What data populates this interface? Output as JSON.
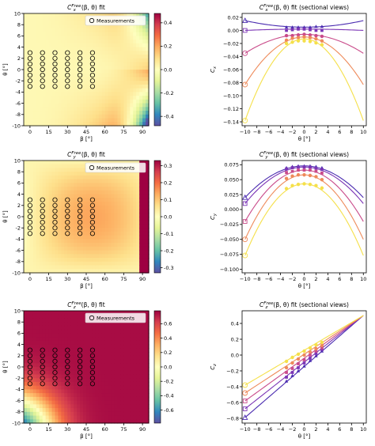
{
  "chart_data": [
    {
      "type": "heatmap",
      "title": "C_x^Free(β,θ) fit",
      "title_base": "C",
      "title_sub": "x",
      "title_sup": "Free",
      "title_rest": "(β, θ) fit",
      "xlabel": "β [°]",
      "ylabel": "θ [°]",
      "xticks": [
        0,
        15,
        30,
        45,
        60,
        75,
        90
      ],
      "yticks": [
        -10,
        -8,
        -6,
        -4,
        -2,
        0,
        2,
        4,
        6,
        8,
        10
      ],
      "xlim": [
        -5,
        95
      ],
      "ylim": [
        -10,
        10
      ],
      "legend": "Measurements",
      "colorbar": {
        "min": -0.48,
        "max": 0.48,
        "ticks": [
          "-0.4",
          "-0.2",
          "0.0",
          "0.2",
          "0.4"
        ],
        "tick_values": [
          -0.4,
          -0.2,
          0.0,
          0.2,
          0.4
        ]
      },
      "measurements_beta": [
        0,
        10,
        20,
        30,
        40,
        50
      ],
      "measurements_theta": [
        -3,
        -2,
        -1,
        0,
        1,
        2,
        3
      ]
    },
    {
      "type": "line",
      "title": "C_x^Free(β,θ) fit (sectional views)",
      "title_base": "C",
      "title_sub": "x",
      "title_sup": "Free",
      "title_rest": "(β, θ) fit (sectional views)",
      "xlabel": "θ [°]",
      "ylabel": "C_x",
      "ylabel_base": "C",
      "ylabel_sub": "x",
      "xticks": [
        -10,
        -8,
        -6,
        -4,
        -2,
        0,
        2,
        4,
        6,
        8,
        10
      ],
      "yticks": [
        0.02,
        0.0,
        -0.02,
        -0.04,
        -0.06,
        -0.08,
        -0.1,
        -0.12,
        -0.14
      ],
      "ytick_labels": [
        "0.02",
        "0.00",
        "−0.02",
        "−0.04",
        "−0.06",
        "−0.08",
        "−0.10",
        "−0.12",
        "−0.14"
      ],
      "xlim": [
        -10.5,
        10.5
      ],
      "ylim": [
        -0.146,
        0.026
      ],
      "series": [
        {
          "color": "#4a2bb0",
          "endpoint": 0.015,
          "values_at": [
            [
              -3,
              0.005
            ],
            [
              -2,
              0.005
            ],
            [
              -1,
              0.005
            ],
            [
              0,
              0.005
            ],
            [
              1,
              0.005
            ],
            [
              2,
              0.006
            ],
            [
              3,
              0.006
            ]
          ],
          "marker": "triangle",
          "curve": [
            0.0018,
            0.0,
            0.005
          ],
          "fit": "quad"
        },
        {
          "color": "#7b34b5",
          "endpoint": 0.0,
          "values_at": [
            [
              -3,
              0.0
            ],
            [
              -2,
              0.001
            ],
            [
              -1,
              0.002
            ],
            [
              0,
              0.002
            ],
            [
              1,
              0.001
            ],
            [
              2,
              0.0
            ],
            [
              3,
              0.0
            ]
          ],
          "marker": "square",
          "curve": [
            0.0009,
            0.0,
            0.002
          ],
          "fit": "quad"
        },
        {
          "color": "#c94b8a",
          "endpoint": -0.035,
          "values_at": [
            [
              -3,
              -0.008
            ],
            [
              -2,
              -0.008
            ],
            [
              -1,
              -0.007
            ],
            [
              0,
              -0.006
            ],
            [
              1,
              -0.007
            ],
            [
              2,
              -0.008
            ],
            [
              3,
              -0.009
            ]
          ],
          "marker": "circle",
          "curve": [
            -0.0003,
            0.0,
            -0.006
          ],
          "fit": "quad"
        },
        {
          "color": "#ee8a5a",
          "endpoint": -0.083,
          "values_at": [
            [
              -3,
              -0.015
            ],
            [
              -2,
              -0.012
            ],
            [
              -1,
              -0.011
            ],
            [
              0,
              -0.01
            ],
            [
              1,
              -0.011
            ],
            [
              2,
              -0.013
            ],
            [
              3,
              -0.016
            ]
          ],
          "marker": "circle",
          "curve": [
            -0.0008,
            0.0,
            -0.01
          ],
          "fit": "quad"
        },
        {
          "color": "#f5e04a",
          "endpoint": -0.138,
          "values_at": [
            [
              -3,
              -0.02
            ],
            [
              -2,
              -0.018
            ],
            [
              -1,
              -0.016
            ],
            [
              0,
              -0.016
            ],
            [
              1,
              -0.017
            ],
            [
              2,
              -0.019
            ],
            [
              3,
              -0.022
            ]
          ],
          "marker": "circle",
          "curve": [
            -0.00125,
            0.0,
            -0.013
          ],
          "fit": "quad"
        }
      ]
    },
    {
      "type": "heatmap",
      "title": "C_y^Free(β,θ) fit",
      "title_base": "C",
      "title_sub": "y",
      "title_sup": "Free",
      "title_rest": "(β, θ) fit",
      "xlabel": "β [°]",
      "ylabel": "θ [°]",
      "xticks": [
        0,
        15,
        30,
        45,
        60,
        75,
        90
      ],
      "yticks": [
        -10,
        -8,
        -6,
        -4,
        -2,
        0,
        2,
        4,
        6,
        8,
        10
      ],
      "xlim": [
        -5,
        95
      ],
      "ylim": [
        -10,
        10
      ],
      "legend": "Measurements",
      "colorbar": {
        "min": -0.33,
        "max": 0.33,
        "ticks": [
          "-0.3",
          "-0.2",
          "-0.1",
          "0.0",
          "0.1",
          "0.2",
          "0.3"
        ],
        "tick_values": [
          -0.3,
          -0.2,
          -0.1,
          0.0,
          0.1,
          0.2,
          0.3
        ]
      },
      "measurements_beta": [
        0,
        10,
        20,
        30,
        40,
        50
      ],
      "measurements_theta": [
        -3,
        -2,
        -1,
        0,
        1,
        2,
        3
      ]
    },
    {
      "type": "line",
      "title": "C_y^Free(β,θ) fit (sectional views)",
      "title_base": "C",
      "title_sub": "y",
      "title_sup": "Free",
      "title_rest": "(β, θ) fit (sectional views)",
      "xlabel": "θ [°]",
      "ylabel": "C_y",
      "ylabel_base": "C",
      "ylabel_sub": "y",
      "xticks": [
        -10,
        -8,
        -6,
        -4,
        -2,
        0,
        2,
        4,
        6,
        8,
        10
      ],
      "yticks": [
        0.075,
        0.05,
        0.025,
        0.0,
        -0.025,
        -0.05,
        -0.075,
        -0.1
      ],
      "ytick_labels": [
        "0.075",
        "0.050",
        "0.025",
        "0.000",
        "−0.025",
        "−0.050",
        "−0.075",
        "−0.100"
      ],
      "xlim": [
        -10.5,
        10.5
      ],
      "ylim": [
        -0.106,
        0.082
      ],
      "series": [
        {
          "color": "#4a2bb0",
          "endpoint": 0.02,
          "values_at": [
            [
              -3,
              0.07
            ],
            [
              -2,
              0.072
            ],
            [
              -1,
              0.073
            ],
            [
              0,
              0.073
            ],
            [
              1,
              0.073
            ],
            [
              2,
              0.072
            ],
            [
              3,
              0.07
            ]
          ],
          "marker": "triangle",
          "curve": [
            -0.0005,
            0.0,
            0.073
          ],
          "fit": "quad"
        },
        {
          "color": "#7b34b5",
          "endpoint": 0.01,
          "values_at": [
            [
              -3,
              0.068
            ],
            [
              -2,
              0.07
            ],
            [
              -1,
              0.071
            ],
            [
              0,
              0.071
            ],
            [
              1,
              0.071
            ],
            [
              2,
              0.069
            ],
            [
              3,
              0.067
            ]
          ],
          "marker": "square",
          "curve": [
            -0.0006,
            0.0,
            0.071
          ],
          "fit": "quad"
        },
        {
          "color": "#c94b8a",
          "endpoint": -0.02,
          "values_at": [
            [
              -3,
              0.062
            ],
            [
              -2,
              0.064
            ],
            [
              -1,
              0.066
            ],
            [
              0,
              0.066
            ],
            [
              1,
              0.066
            ],
            [
              2,
              0.064
            ],
            [
              3,
              0.061
            ]
          ],
          "marker": "square",
          "curve": [
            -0.00086,
            0.0,
            0.066
          ],
          "fit": "quad"
        },
        {
          "color": "#ee8a5a",
          "endpoint": -0.05,
          "values_at": [
            [
              -3,
              0.052
            ],
            [
              -2,
              0.056
            ],
            [
              -1,
              0.058
            ],
            [
              0,
              0.058
            ],
            [
              1,
              0.057
            ],
            [
              2,
              0.055
            ],
            [
              3,
              0.05
            ]
          ],
          "marker": "circle",
          "curve": [
            -0.00108,
            0.0,
            0.058
          ],
          "fit": "quad"
        },
        {
          "color": "#f5e04a",
          "endpoint": -0.077,
          "values_at": [
            [
              -3,
              0.035
            ],
            [
              -2,
              0.04
            ],
            [
              -1,
              0.042
            ],
            [
              0,
              0.043
            ],
            [
              1,
              0.042
            ],
            [
              2,
              0.04
            ],
            [
              3,
              0.036
            ]
          ],
          "marker": "circle",
          "curve": [
            -0.0012,
            0.0,
            0.043
          ],
          "fit": "quad"
        }
      ]
    },
    {
      "type": "heatmap",
      "title": "C_z^Free(β,θ) fit",
      "title_base": "C",
      "title_sub": "z",
      "title_sup": "Free",
      "title_rest": "(β, θ) fit",
      "xlabel": "β [°]",
      "ylabel": "θ [°]",
      "xticks": [
        0,
        15,
        30,
        45,
        60,
        75,
        90
      ],
      "yticks": [
        -10,
        -8,
        -6,
        -4,
        -2,
        0,
        2,
        4,
        6,
        8,
        10
      ],
      "xlim": [
        -5,
        95
      ],
      "ylim": [
        -10,
        10
      ],
      "legend": "Measurements",
      "colorbar": {
        "min": -0.78,
        "max": 0.78,
        "ticks": [
          "-0.6",
          "-0.4",
          "-0.2",
          "0.0",
          "0.2",
          "0.4",
          "0.6"
        ],
        "tick_values": [
          -0.6,
          -0.4,
          -0.2,
          0.0,
          0.2,
          0.4,
          0.6
        ]
      },
      "measurements_beta": [
        0,
        10,
        20,
        30,
        40,
        50
      ],
      "measurements_theta": [
        -3,
        -2,
        -1,
        0,
        1,
        2,
        3
      ]
    },
    {
      "type": "line",
      "title": "C_z^Free(β,θ) fit (sectional views)",
      "title_base": "C",
      "title_sub": "z",
      "title_sup": "Free",
      "title_rest": "(β, θ) fit (sectional views)",
      "xlabel": "θ [°]",
      "ylabel": "C_z",
      "ylabel_base": "C",
      "ylabel_sub": "z",
      "xticks": [
        -10,
        -8,
        -6,
        -4,
        -2,
        0,
        2,
        4,
        6,
        8,
        10
      ],
      "yticks": [
        0.4,
        0.2,
        0.0,
        -0.2,
        -0.4,
        -0.6,
        -0.8
      ],
      "ytick_labels": [
        "0.4",
        "0.2",
        "0.0",
        "−0.2",
        "−0.4",
        "−0.6",
        "−0.8"
      ],
      "xlim": [
        -10.5,
        10.5
      ],
      "ylim": [
        -0.86,
        0.56
      ],
      "series": [
        {
          "color": "#4a2bb0",
          "endpoint": -0.79,
          "values_at": [
            [
              -3,
              -0.33
            ],
            [
              -2,
              -0.26
            ],
            [
              -1,
              -0.2
            ],
            [
              0,
              -0.14
            ],
            [
              1,
              -0.07
            ],
            [
              2,
              -0.01
            ],
            [
              3,
              0.05
            ]
          ],
          "marker": "triangle",
          "curve": [
            0.0,
            0.0645,
            -0.145
          ],
          "fit": "lin"
        },
        {
          "color": "#7b34b5",
          "endpoint": -0.68,
          "values_at": [
            [
              -3,
              -0.28
            ],
            [
              -2,
              -0.22
            ],
            [
              -1,
              -0.16
            ],
            [
              0,
              -0.1
            ],
            [
              1,
              -0.04
            ],
            [
              2,
              0.02
            ],
            [
              3,
              0.07
            ]
          ],
          "marker": "square",
          "curve": [
            0.0,
            0.059,
            -0.09
          ],
          "fit": "lin"
        },
        {
          "color": "#c94b8a",
          "endpoint": -0.58,
          "values_at": [
            [
              -3,
              -0.22
            ],
            [
              -2,
              -0.17
            ],
            [
              -1,
              -0.11
            ],
            [
              0,
              -0.06
            ],
            [
              1,
              0.0
            ],
            [
              2,
              0.05
            ],
            [
              3,
              0.09
            ]
          ],
          "marker": "square",
          "curve": [
            0.0,
            0.054,
            -0.04
          ],
          "fit": "lin"
        },
        {
          "color": "#ee8a5a",
          "endpoint": -0.48,
          "values_at": [
            [
              -3,
              -0.16
            ],
            [
              -2,
              -0.1
            ],
            [
              -1,
              -0.05
            ],
            [
              0,
              0.0
            ],
            [
              1,
              0.04
            ],
            [
              2,
              0.08
            ],
            [
              3,
              0.12
            ]
          ],
          "marker": "circle",
          "curve": [
            0.0,
            0.049,
            0.01
          ],
          "fit": "lin"
        },
        {
          "color": "#f5e04a",
          "endpoint": -0.38,
          "values_at": [
            [
              -3,
              -0.08
            ],
            [
              -2,
              -0.03
            ],
            [
              -1,
              0.01
            ],
            [
              0,
              0.05
            ],
            [
              1,
              0.09
            ],
            [
              2,
              0.13
            ],
            [
              3,
              0.16
            ]
          ],
          "marker": "circle",
          "curve": [
            0.0,
            0.044,
            0.06
          ],
          "fit": "lin"
        }
      ]
    }
  ]
}
